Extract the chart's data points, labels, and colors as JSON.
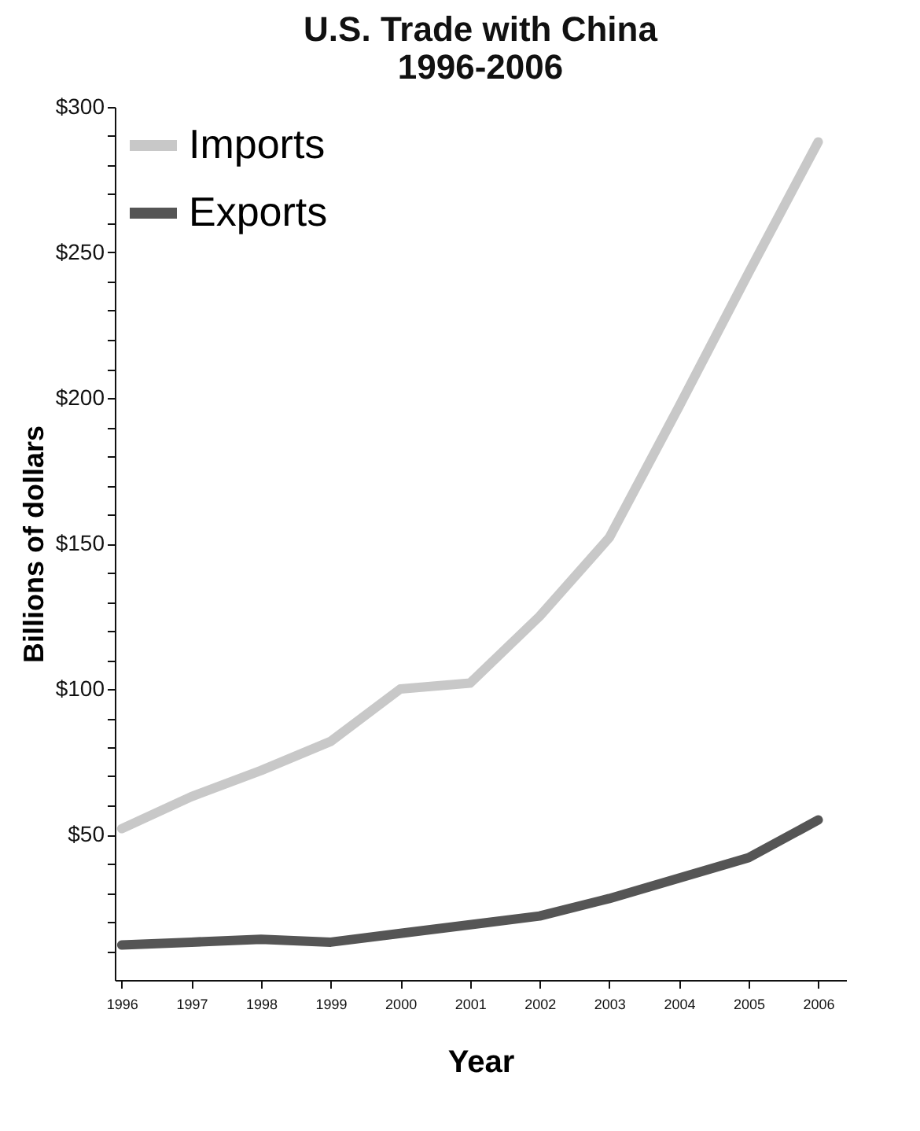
{
  "chart_data": {
    "type": "line",
    "title": [
      "U.S. Trade with China",
      "1996-2006"
    ],
    "xlabel": "Year",
    "ylabel": "Billions of dollars",
    "x": [
      1996,
      1997,
      1998,
      1999,
      2000,
      2001,
      2002,
      2003,
      2004,
      2005,
      2006
    ],
    "series": [
      {
        "name": "Imports",
        "color": "#c8c8c8",
        "values": [
          52,
          63,
          72,
          82,
          100,
          102,
          125,
          152,
          197,
          243,
          288
        ]
      },
      {
        "name": "Exports",
        "color": "#555555",
        "values": [
          12,
          13,
          14,
          13,
          16,
          19,
          22,
          28,
          35,
          42,
          55
        ]
      }
    ],
    "xlim": [
      1995.9,
      2006.4
    ],
    "xticks": [
      1996,
      1997,
      1998,
      1999,
      2000,
      2001,
      2002,
      2003,
      2004,
      2005,
      2006
    ],
    "ylim": [
      0,
      300
    ],
    "yticks": [
      {
        "value": 10,
        "label": null
      },
      {
        "value": 20,
        "label": null
      },
      {
        "value": 30,
        "label": null
      },
      {
        "value": 40,
        "label": null
      },
      {
        "value": 50,
        "label": "$50"
      },
      {
        "value": 60,
        "label": null
      },
      {
        "value": 70,
        "label": null
      },
      {
        "value": 80,
        "label": null
      },
      {
        "value": 90,
        "label": null
      },
      {
        "value": 100,
        "label": "$100"
      },
      {
        "value": 110,
        "label": null
      },
      {
        "value": 120,
        "label": null
      },
      {
        "value": 130,
        "label": null
      },
      {
        "value": 140,
        "label": null
      },
      {
        "value": 150,
        "label": "$150"
      },
      {
        "value": 160,
        "label": null
      },
      {
        "value": 170,
        "label": null
      },
      {
        "value": 180,
        "label": null
      },
      {
        "value": 190,
        "label": null
      },
      {
        "value": 200,
        "label": "$200"
      },
      {
        "value": 210,
        "label": null
      },
      {
        "value": 220,
        "label": null
      },
      {
        "value": 230,
        "label": null
      },
      {
        "value": 240,
        "label": null
      },
      {
        "value": 250,
        "label": "$250"
      },
      {
        "value": 260,
        "label": null
      },
      {
        "value": 270,
        "label": null
      },
      {
        "value": 280,
        "label": null
      },
      {
        "value": 290,
        "label": null
      },
      {
        "value": 300,
        "label": "$300"
      }
    ],
    "grid": false,
    "legend": "top left",
    "marker": "none",
    "line_style": "solid"
  }
}
